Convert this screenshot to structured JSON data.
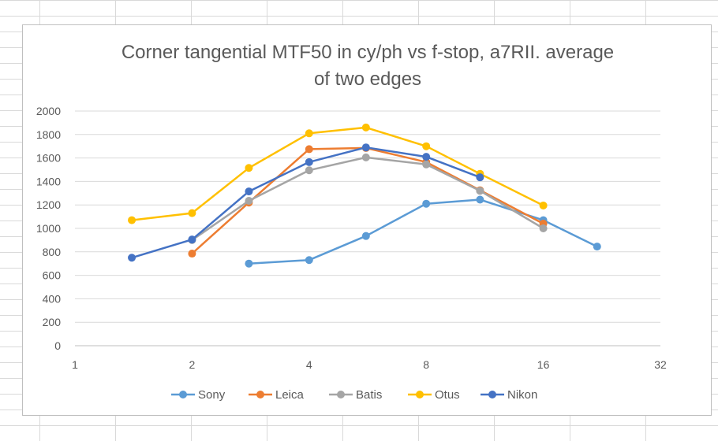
{
  "chart_data": {
    "type": "line",
    "title_line1": "Corner tangential MTF50 in cy/ph vs f-stop, a7RII. average",
    "title_line2": "of two edges",
    "xlabel": "",
    "ylabel": "",
    "x_scale": "log2",
    "xlim": [
      1,
      32
    ],
    "ylim": [
      0,
      2000
    ],
    "x_ticks": [
      "1",
      "2",
      "4",
      "8",
      "16",
      "32"
    ],
    "y_ticks": [
      "0",
      "200",
      "400",
      "600",
      "800",
      "1000",
      "1200",
      "1400",
      "1600",
      "1800",
      "2000"
    ],
    "grid": "horizontal",
    "legend": "bottom",
    "series": [
      {
        "name": "Sony",
        "color": "#5B9BD5",
        "x": [
          2.8,
          4,
          5.6,
          8,
          11,
          16,
          22
        ],
        "y": [
          700,
          730,
          935,
          1210,
          1245,
          1070,
          845
        ]
      },
      {
        "name": "Leica",
        "color": "#ED7D31",
        "x": [
          2,
          2.8,
          4,
          5.6,
          8,
          11,
          16
        ],
        "y": [
          785,
          1220,
          1675,
          1685,
          1565,
          1325,
          1040
        ]
      },
      {
        "name": "Batis",
        "color": "#A5A5A5",
        "x": [
          2,
          2.8,
          4,
          5.6,
          8,
          11,
          16
        ],
        "y": [
          900,
          1235,
          1495,
          1605,
          1545,
          1320,
          1000
        ]
      },
      {
        "name": "Otus",
        "color": "#FFC000",
        "x": [
          1.4,
          2,
          2.8,
          4,
          5.6,
          8,
          11,
          16
        ],
        "y": [
          1070,
          1130,
          1515,
          1810,
          1860,
          1700,
          1465,
          1195
        ]
      },
      {
        "name": "Nikon",
        "color": "#4472C4",
        "x": [
          1.4,
          2,
          2.8,
          4,
          5.6,
          8,
          11
        ],
        "y": [
          750,
          905,
          1315,
          1565,
          1690,
          1610,
          1435
        ]
      }
    ]
  }
}
